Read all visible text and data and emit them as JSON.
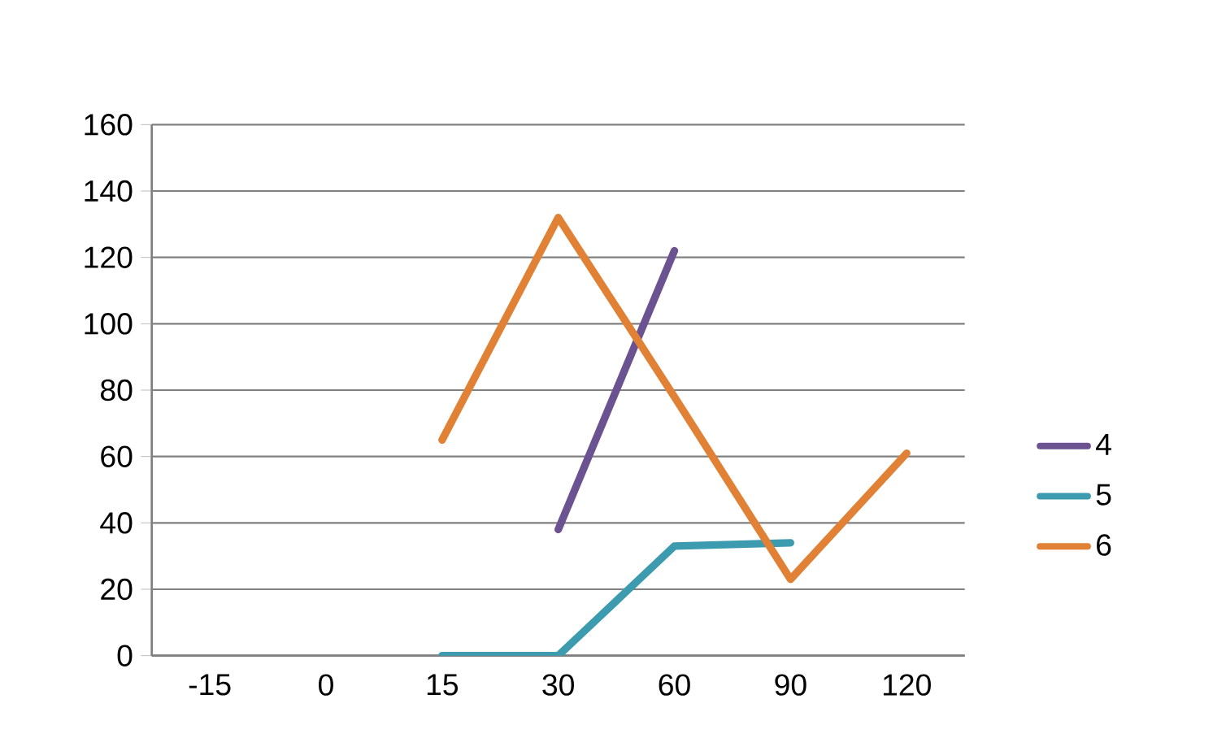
{
  "chart_data": {
    "type": "line",
    "categories": [
      "-15",
      "0",
      "15",
      "30",
      "60",
      "90",
      "120"
    ],
    "series": [
      {
        "name": "4",
        "color": "#6b5392",
        "values": [
          null,
          null,
          null,
          38,
          122,
          null,
          null
        ]
      },
      {
        "name": "5",
        "color": "#3d9bb0",
        "values": [
          null,
          null,
          0,
          0,
          33,
          34,
          null
        ]
      },
      {
        "name": "6",
        "color": "#e08135",
        "values": [
          null,
          null,
          65,
          132,
          78,
          23,
          61
        ]
      }
    ],
    "ylim": [
      0,
      160
    ],
    "yticks": [
      0,
      20,
      40,
      60,
      80,
      100,
      120,
      140,
      160
    ],
    "grid": "y",
    "legend": "right",
    "marker": "none",
    "line_style": "solid"
  }
}
